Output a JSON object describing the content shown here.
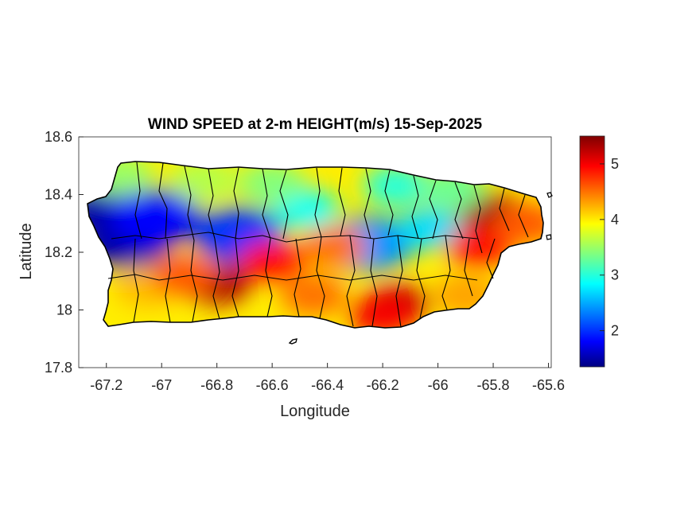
{
  "chart_data": {
    "type": "heatmap",
    "title": "WIND SPEED at 2-m HEIGHT(m/s) 15-Sep-2025",
    "xlabel": "Longitude",
    "ylabel": "Latitude",
    "xlim": [
      -67.3,
      -65.59
    ],
    "ylim": [
      17.8,
      18.6
    ],
    "x_ticks": [
      -67.2,
      -67,
      -66.8,
      -66.6,
      -66.4,
      -66.2,
      -66,
      -65.8,
      -65.6
    ],
    "x_tick_labels": [
      "-67.2",
      "-67",
      "-66.8",
      "-66.6",
      "-66.4",
      "-66.2",
      "-66",
      "-65.8",
      "-65.6"
    ],
    "y_ticks": [
      17.8,
      18,
      18.2,
      18.4,
      18.6
    ],
    "y_tick_labels": [
      "17.8",
      "18",
      "18.2",
      "18.4",
      "18.6"
    ],
    "colorbar": {
      "colormap": "jet",
      "limits": [
        1.35,
        5.5
      ],
      "ticks": [
        2,
        3,
        4,
        5
      ],
      "tick_labels": [
        "2",
        "3",
        "4",
        "5"
      ]
    },
    "field_centers": [
      {
        "lon": -67.18,
        "lat": 18.35,
        "value": 1.5
      },
      {
        "lon": -67.13,
        "lat": 18.24,
        "value": 1.5
      },
      {
        "lon": -67.02,
        "lat": 18.32,
        "value": 1.8
      },
      {
        "lon": -66.72,
        "lat": 18.26,
        "value": 2.0
      },
      {
        "lon": -66.48,
        "lat": 18.35,
        "value": 2.9
      },
      {
        "lon": -66.25,
        "lat": 18.23,
        "value": 2.4
      },
      {
        "lon": -66.03,
        "lat": 18.28,
        "value": 2.7
      },
      {
        "lon": -66.15,
        "lat": 18.43,
        "value": 3.0
      },
      {
        "lon": -66.8,
        "lat": 18.09,
        "value": 5.3
      },
      {
        "lon": -66.6,
        "lat": 18.17,
        "value": 4.9
      },
      {
        "lon": -66.15,
        "lat": 18.02,
        "value": 5.2
      },
      {
        "lon": -66.2,
        "lat": 17.98,
        "value": 5.0
      },
      {
        "lon": -65.8,
        "lat": 18.33,
        "value": 5.4
      },
      {
        "lon": -65.85,
        "lat": 18.22,
        "value": 4.9
      },
      {
        "lon": -66.38,
        "lat": 18.22,
        "value": 4.5
      },
      {
        "lon": -67.05,
        "lat": 18.08,
        "value": 4.2
      },
      {
        "lon": -66.92,
        "lat": 18.12,
        "value": 4.6
      },
      {
        "lon": -66.45,
        "lat": 18.05,
        "value": 4.5
      },
      {
        "lon": -65.9,
        "lat": 18.05,
        "value": 4.3
      },
      {
        "lon": -65.68,
        "lat": 18.3,
        "value": 4.6
      },
      {
        "lon": -66.85,
        "lat": 18.45,
        "value": 3.6
      },
      {
        "lon": -66.6,
        "lat": 18.44,
        "value": 3.4
      },
      {
        "lon": -65.95,
        "lat": 18.42,
        "value": 3.3
      },
      {
        "lon": -67.15,
        "lat": 18.47,
        "value": 3.5
      }
    ]
  },
  "palette": {
    "jet": [
      "#000080",
      "#0000ff",
      "#00ffff",
      "#ffff00",
      "#ff0000",
      "#800000"
    ],
    "coast_line": "#000000",
    "axes_line": "#262626"
  }
}
